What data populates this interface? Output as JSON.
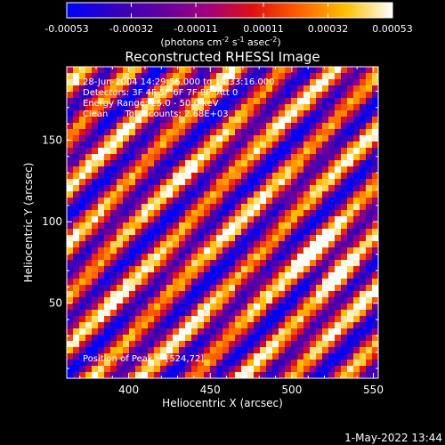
{
  "chart_data": {
    "type": "heatmap",
    "title": "Reconstructed RHESSI Image",
    "xlabel": "Heliocentric X (arcsec)",
    "ylabel": "Heliocentric Y (arcsec)",
    "xlim": [
      362,
      553
    ],
    "ylim": [
      4,
      195
    ],
    "x_ticks": [
      400,
      450,
      500,
      550
    ],
    "y_ticks": [
      50,
      100,
      150
    ],
    "colorbar": {
      "range": [
        -0.00053,
        0.00053
      ],
      "tick_values": [
        -0.00053,
        -0.00032,
        -0.00011,
        0.00011,
        0.00032,
        0.00053
      ],
      "tick_labels": [
        "-0.00053",
        "-0.00032",
        "-0.00011",
        "0.00011",
        "0.00032",
        "0.00053"
      ],
      "units_text": "(photons cm",
      "units_exp1": "-2",
      "units_mid": " s",
      "units_exp2": "-1",
      "units_mid2": " asec",
      "units_exp3": "-2",
      "units_end": ")",
      "colors": [
        "#0000ff",
        "#3000c0",
        "#6000a0",
        "#a00080",
        "#e01010",
        "#ff6000",
        "#ffc000",
        "#ffffff"
      ]
    },
    "annotations": [
      "28-Jun-2004 14:29:56.000 to 14:33:16.000",
      "Detectors: 3F 4F 5F 6F 7F 8F, Att 0",
      "Energy Range: 25.0 - 50.0 keV",
      "Clean      Total counts: 2.68E+03"
    ],
    "peak_label": "Position of Peak = [524,72]",
    "peak_position": [
      524,
      72
    ],
    "grid": false
  },
  "footer": {
    "date": "1-May-2022 13:44"
  }
}
